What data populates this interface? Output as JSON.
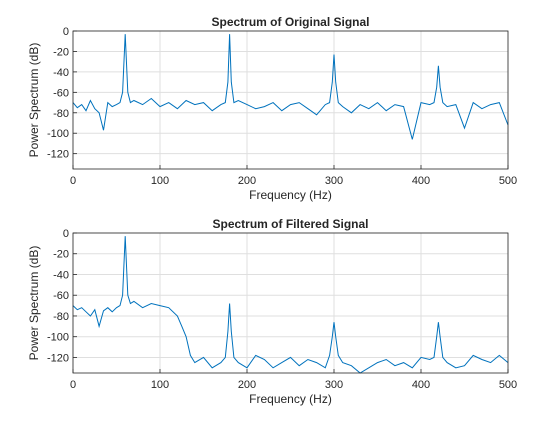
{
  "chart_data": [
    {
      "type": "line",
      "title": "Spectrum of Original Signal",
      "xlabel": "Frequency (Hz)",
      "ylabel": "Power Spectrum (dB)",
      "xlim": [
        0,
        500
      ],
      "ylim": [
        -135,
        0
      ],
      "xticks": [
        0,
        100,
        200,
        300,
        400,
        500
      ],
      "yticks": [
        0,
        -20,
        -40,
        -60,
        -80,
        -100,
        -120
      ],
      "grid": true,
      "color": "#0072bd",
      "series": [
        {
          "peaks": [
            [
              60,
              -3
            ],
            [
              180,
              -3
            ],
            [
              300,
              -23
            ],
            [
              420,
              -34
            ]
          ],
          "noise_floor_db": -72,
          "x": [
            0,
            5,
            10,
            15,
            20,
            25,
            30,
            35,
            40,
            45,
            50,
            54,
            57,
            60,
            63,
            66,
            70,
            80,
            90,
            100,
            110,
            120,
            130,
            140,
            150,
            160,
            170,
            175,
            178,
            180,
            182,
            185,
            190,
            200,
            210,
            220,
            230,
            240,
            250,
            260,
            270,
            280,
            290,
            295,
            298,
            300,
            302,
            305,
            310,
            320,
            330,
            340,
            350,
            360,
            370,
            380,
            390,
            400,
            410,
            415,
            418,
            420,
            422,
            425,
            430,
            440,
            450,
            460,
            470,
            480,
            490,
            500
          ],
          "y": [
            -70,
            -75,
            -72,
            -78,
            -68,
            -76,
            -80,
            -97,
            -70,
            -74,
            -72,
            -70,
            -60,
            -3,
            -60,
            -70,
            -68,
            -72,
            -66,
            -74,
            -70,
            -76,
            -68,
            -72,
            -70,
            -78,
            -72,
            -70,
            -50,
            -3,
            -50,
            -70,
            -68,
            -72,
            -76,
            -74,
            -70,
            -78,
            -72,
            -70,
            -76,
            -82,
            -72,
            -70,
            -50,
            -23,
            -50,
            -70,
            -74,
            -80,
            -72,
            -76,
            -70,
            -78,
            -72,
            -74,
            -106,
            -70,
            -72,
            -70,
            -55,
            -34,
            -55,
            -70,
            -74,
            -72,
            -95,
            -70,
            -76,
            -72,
            -70,
            -92
          ]
        }
      ]
    },
    {
      "type": "line",
      "title": "Spectrum of Filtered Signal",
      "xlabel": "Frequency (Hz)",
      "ylabel": "Power Spectrum (dB)",
      "xlim": [
        0,
        500
      ],
      "ylim": [
        -135,
        0
      ],
      "xticks": [
        0,
        100,
        200,
        300,
        400,
        500
      ],
      "yticks": [
        0,
        -20,
        -40,
        -60,
        -80,
        -100,
        -120
      ],
      "grid": true,
      "color": "#0072bd",
      "series": [
        {
          "peaks": [
            [
              60,
              -3
            ],
            [
              180,
              -68
            ],
            [
              300,
              -86
            ],
            [
              420,
              -86
            ]
          ],
          "x": [
            0,
            5,
            10,
            15,
            20,
            25,
            30,
            35,
            40,
            45,
            50,
            54,
            57,
            60,
            63,
            66,
            70,
            80,
            90,
            100,
            110,
            120,
            125,
            130,
            135,
            140,
            150,
            160,
            170,
            175,
            178,
            180,
            182,
            185,
            190,
            200,
            210,
            220,
            230,
            240,
            250,
            260,
            270,
            280,
            290,
            295,
            298,
            300,
            302,
            305,
            310,
            320,
            330,
            340,
            350,
            360,
            370,
            380,
            390,
            400,
            410,
            415,
            418,
            420,
            422,
            425,
            430,
            440,
            450,
            460,
            470,
            480,
            490,
            500
          ],
          "y": [
            -70,
            -74,
            -72,
            -76,
            -80,
            -74,
            -90,
            -75,
            -72,
            -76,
            -72,
            -70,
            -60,
            -3,
            -60,
            -68,
            -66,
            -72,
            -68,
            -70,
            -72,
            -80,
            -90,
            -100,
            -118,
            -125,
            -120,
            -130,
            -125,
            -120,
            -95,
            -68,
            -95,
            -120,
            -125,
            -130,
            -118,
            -122,
            -130,
            -125,
            -120,
            -128,
            -122,
            -125,
            -130,
            -118,
            -100,
            -86,
            -100,
            -118,
            -125,
            -128,
            -135,
            -130,
            -125,
            -122,
            -128,
            -125,
            -130,
            -120,
            -122,
            -120,
            -100,
            -86,
            -100,
            -120,
            -125,
            -130,
            -128,
            -118,
            -122,
            -125,
            -118,
            -125
          ]
        }
      ]
    }
  ]
}
